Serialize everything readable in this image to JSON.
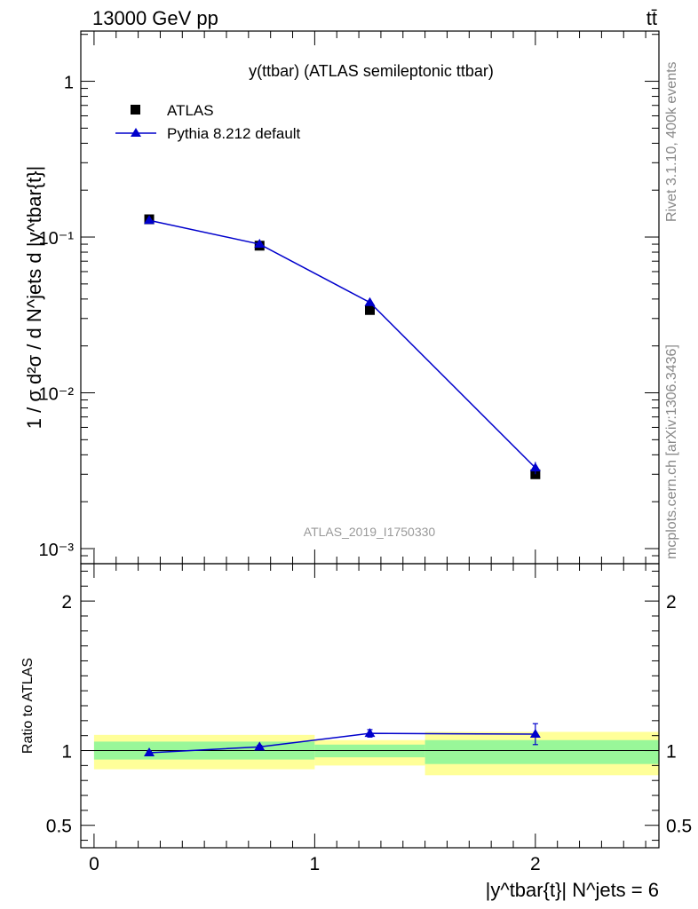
{
  "header": {
    "energy_label": "13000 GeV pp",
    "process_label": "tt̄"
  },
  "side_labels": {
    "rivet": "Rivet 3.1.10,  400k events",
    "mcplots": "mcplots.cern.ch [arXiv:1306.3436]"
  },
  "chart_data": [
    {
      "type": "scatter",
      "title": "y(ttbar) (ATLAS semileptonic ttbar)",
      "watermark": "ATLAS_2019_I1750330",
      "ylabel": "1 / σ d²σ / d N^jets d |y^tbar{t}|",
      "yscale": "log",
      "ylim": [
        0.0008,
        2.1
      ],
      "xlim": [
        -0.06,
        2.56
      ],
      "yticks": [
        {
          "label": "10⁻³",
          "value": 0.001
        },
        {
          "label": "10⁻²",
          "value": 0.01
        },
        {
          "label": "10⁻¹",
          "value": 0.1
        },
        {
          "label": "1",
          "value": 1
        }
      ],
      "legend": {
        "position": "top-left",
        "entries": [
          "ATLAS",
          "Pythia 8.212 default"
        ]
      },
      "series": [
        {
          "name": "ATLAS",
          "marker": "square",
          "color": "#000000",
          "x": [
            0.25,
            0.75,
            1.25,
            2.0
          ],
          "y": [
            0.13,
            0.088,
            0.034,
            0.003
          ],
          "xerr": [
            0.25,
            0.25,
            0.25,
            0.5
          ]
        },
        {
          "name": "Pythia 8.212 default",
          "marker": "triangle",
          "color": "#0000cc",
          "x": [
            0.25,
            0.75,
            1.25,
            2.0
          ],
          "y": [
            0.128,
            0.09,
            0.038,
            0.0033
          ],
          "yerr": [
            0.002,
            0.0015,
            0.001,
            0.0003
          ]
        }
      ]
    },
    {
      "type": "line",
      "ylabel": "Ratio to ATLAS",
      "xlabel": "|y^tbar{t}| N^jets = 6",
      "ylim": [
        0.35,
        2.25
      ],
      "xlim": [
        -0.06,
        2.56
      ],
      "yticks": [
        {
          "label": "0.5",
          "value": 0.5
        },
        {
          "label": "1",
          "value": 1
        },
        {
          "label": "2",
          "value": 2
        }
      ],
      "xticks": [
        {
          "label": "0",
          "value": 0
        },
        {
          "label": "1",
          "value": 1
        },
        {
          "label": "2",
          "value": 2
        }
      ],
      "bands": [
        {
          "xlo": 0.0,
          "xhi": 1.0,
          "inner": [
            0.94,
            1.06
          ],
          "outer": [
            0.875,
            1.105
          ]
        },
        {
          "xlo": 1.0,
          "xhi": 1.5,
          "inner": [
            0.955,
            1.04
          ],
          "outer": [
            0.9,
            1.07
          ]
        },
        {
          "xlo": 1.5,
          "xhi": 2.56,
          "inner": [
            0.91,
            1.07
          ],
          "outer": [
            0.835,
            1.125
          ]
        }
      ],
      "band_colors": {
        "inner": "#99f799",
        "outer": "#ffff99"
      },
      "series": [
        {
          "name": "Pythia 8.212 default",
          "color": "#0000cc",
          "x": [
            0.25,
            0.75,
            1.25,
            2.0
          ],
          "y": [
            0.985,
            1.025,
            1.115,
            1.11
          ],
          "yerr": [
            0.01,
            0.01,
            0.025,
            0.07
          ]
        }
      ]
    }
  ]
}
